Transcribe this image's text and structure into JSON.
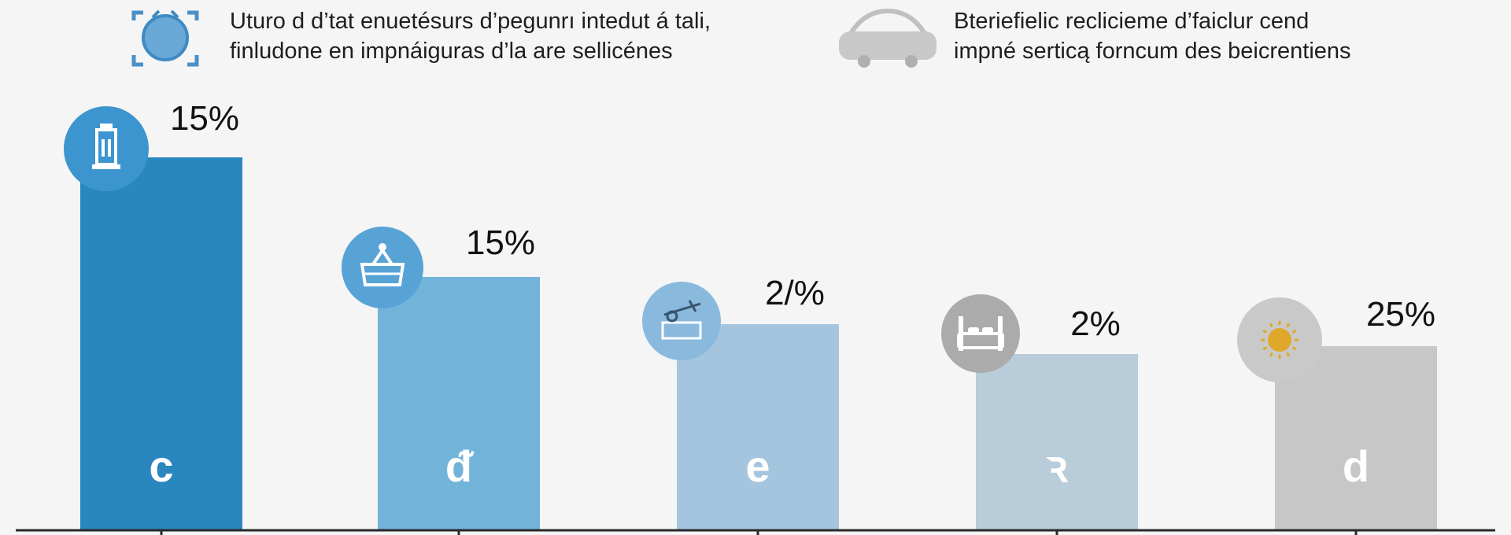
{
  "legend": [
    {
      "icon": "target-icon",
      "color": "#4a90c8",
      "line1": "Uturo d d’tat enuetésurs d’pegunrı intedut á tali,",
      "line2": "finludone en impnáiguras d’la are sellicénes"
    },
    {
      "icon": "car-icon",
      "color": "#c8c8c8",
      "line1": "Bteriefielic reclicieme d’faiclur cend",
      "line2": "impné serticą forncum des beicrentiens"
    }
  ],
  "chart_data": {
    "type": "bar",
    "categories": [
      "c",
      "ᵭ",
      "e",
      "ꝛ",
      "d"
    ],
    "values": [
      15,
      15,
      2,
      2,
      25
    ],
    "value_labels": [
      "15%",
      "15%",
      "2/%",
      "2%",
      "25%"
    ],
    "bar_colors": [
      "#2a86bf",
      "#72b3da",
      "#a5c5df",
      "#b8ccda",
      "#c7c7c7"
    ],
    "icon_colors": [
      "#3d95cf",
      "#58a3d6",
      "#8ab9de",
      "#ababab",
      "#c9c9c9"
    ],
    "icons": [
      "building-icon",
      "basket-icon",
      "sign-icon",
      "bed-icon",
      "sun-icon"
    ]
  }
}
